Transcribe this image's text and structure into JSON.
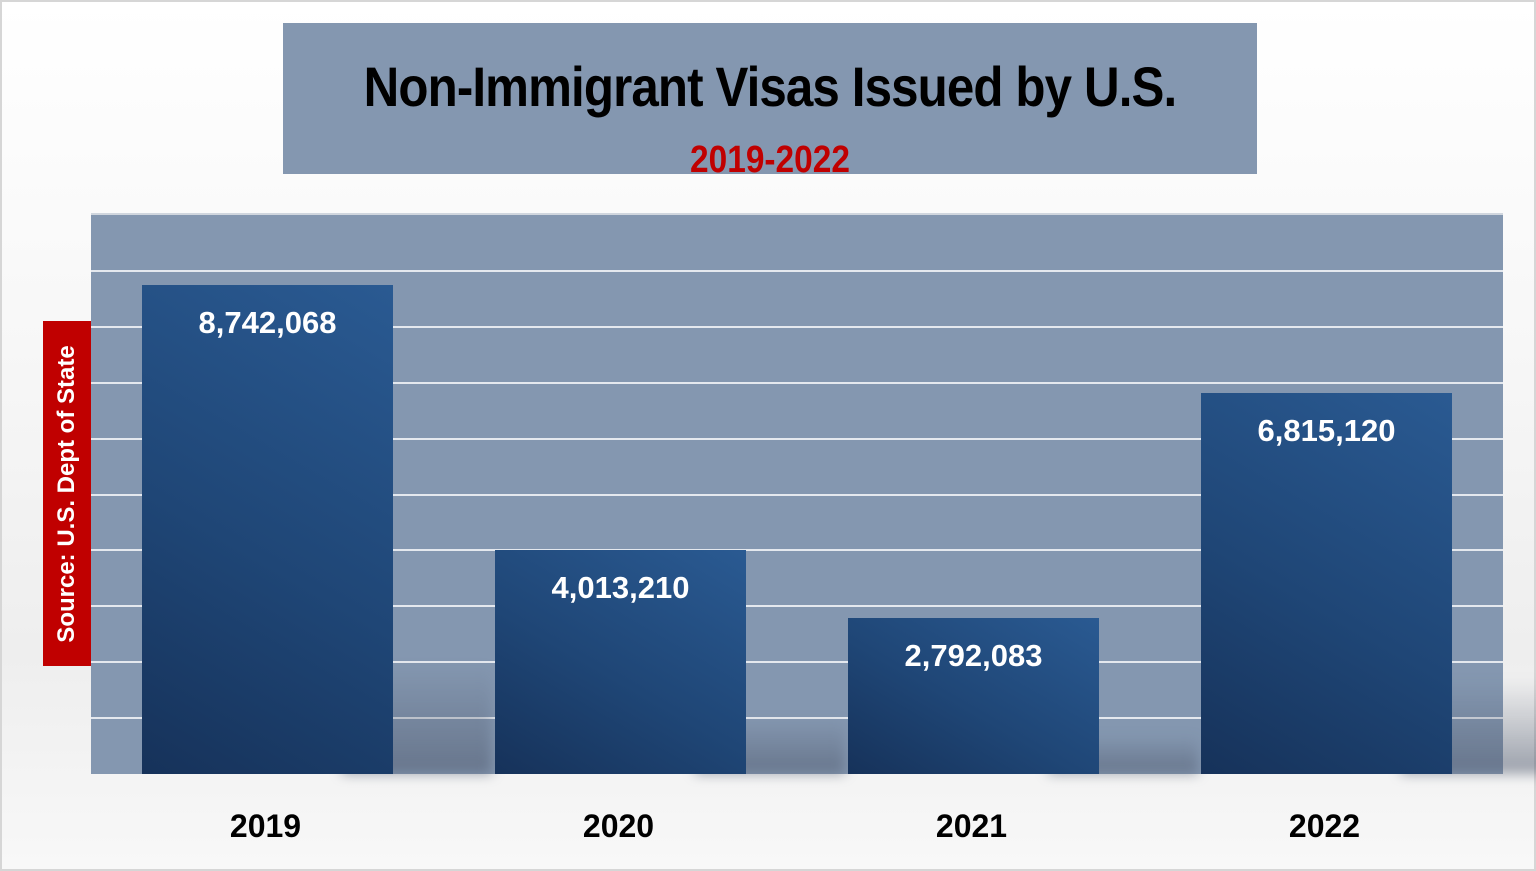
{
  "title": "Non-Immigrant Visas Issued by U.S.",
  "subtitle": "2019-2022",
  "source": "Source: U.S. Dept of State",
  "colors": {
    "title_box": "#8497b0",
    "plot_bg": "#8497b0",
    "bar": "#1f4676",
    "subtitle": "#c00000",
    "source_box": "#c00000"
  },
  "bars": [
    {
      "year": "2019",
      "label": "8,742,068"
    },
    {
      "year": "2020",
      "label": "4,013,210"
    },
    {
      "year": "2021",
      "label": "2,792,083"
    },
    {
      "year": "2022",
      "label": "6,815,120"
    }
  ],
  "chart_data": {
    "type": "bar",
    "title": "Non-Immigrant Visas Issued by U.S.",
    "subtitle": "2019-2022",
    "categories": [
      "2019",
      "2020",
      "2021",
      "2022"
    ],
    "values": [
      8742068,
      4013210,
      2792083,
      6815120
    ],
    "data_labels": [
      "8,742,068",
      "4,013,210",
      "2,792,083",
      "6,815,120"
    ],
    "xlabel": "",
    "ylabel": "",
    "ylim": [
      0,
      10000000
    ],
    "grid": true,
    "grid_step": 1000000,
    "y_tick_labels_visible": false,
    "legend": "none",
    "annotations": [
      "Source: U.S. Dept of State"
    ]
  }
}
